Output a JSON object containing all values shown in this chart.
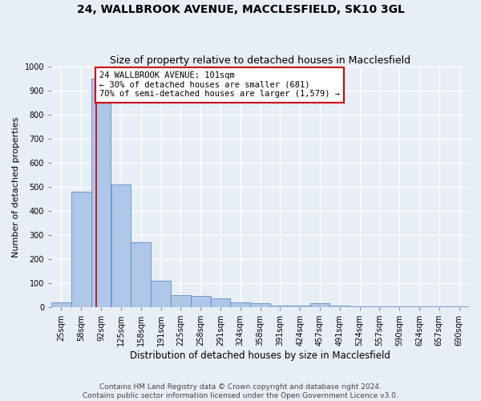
{
  "title": "24, WALLBROOK AVENUE, MACCLESFIELD, SK10 3GL",
  "subtitle": "Size of property relative to detached houses in Macclesfield",
  "xlabel": "Distribution of detached houses by size in Macclesfield",
  "ylabel": "Number of detached properties",
  "bin_labels": [
    "25sqm",
    "58sqm",
    "92sqm",
    "125sqm",
    "158sqm",
    "191sqm",
    "225sqm",
    "258sqm",
    "291sqm",
    "324sqm",
    "358sqm",
    "391sqm",
    "424sqm",
    "457sqm",
    "491sqm",
    "524sqm",
    "557sqm",
    "590sqm",
    "624sqm",
    "657sqm",
    "690sqm"
  ],
  "bar_values": [
    20,
    480,
    950,
    510,
    270,
    110,
    50,
    45,
    35,
    20,
    15,
    5,
    5,
    15,
    5,
    3,
    3,
    3,
    2,
    2,
    2
  ],
  "bar_color": "#aec6e8",
  "bar_edge_color": "#5b8fc9",
  "property_line_color": "#cc0000",
  "annotation_text": "24 WALLBROOK AVENUE: 101sqm\n← 30% of detached houses are smaller (681)\n70% of semi-detached houses are larger (1,579) →",
  "annotation_box_color": "white",
  "annotation_box_edge_color": "#cc0000",
  "ylim": [
    0,
    1000
  ],
  "yticks": [
    0,
    100,
    200,
    300,
    400,
    500,
    600,
    700,
    800,
    900,
    1000
  ],
  "footnote": "Contains HM Land Registry data © Crown copyright and database right 2024.\nContains public sector information licensed under the Open Government Licence v3.0.",
  "background_color": "#e8eef5",
  "axes_background_color": "#e8eef5",
  "grid_color": "white",
  "title_fontsize": 10,
  "subtitle_fontsize": 9,
  "xlabel_fontsize": 8.5,
  "ylabel_fontsize": 8,
  "tick_fontsize": 7,
  "annotation_fontsize": 7.5,
  "footnote_fontsize": 6.5
}
